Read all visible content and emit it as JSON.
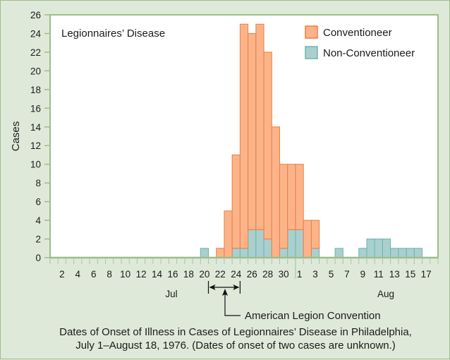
{
  "chart_data": {
    "type": "bar",
    "stacked": true,
    "title": "Legionnaires’ Disease",
    "ylabel": "Cases",
    "xlabel": "",
    "ylim": [
      0,
      26
    ],
    "yticks": [
      0,
      2,
      4,
      6,
      8,
      10,
      12,
      14,
      16,
      18,
      20,
      22,
      24,
      26
    ],
    "grid": false,
    "legend_position": "top-right",
    "months": [
      {
        "label": "Jul",
        "days": 31
      },
      {
        "label": "Aug",
        "days": 18
      }
    ],
    "xtick_labels": [
      {
        "month": 0,
        "day": 2,
        "label": "2"
      },
      {
        "month": 0,
        "day": 4,
        "label": "4"
      },
      {
        "month": 0,
        "day": 6,
        "label": "6"
      },
      {
        "month": 0,
        "day": 8,
        "label": "8"
      },
      {
        "month": 0,
        "day": 10,
        "label": "10"
      },
      {
        "month": 0,
        "day": 12,
        "label": "12"
      },
      {
        "month": 0,
        "day": 14,
        "label": "14"
      },
      {
        "month": 0,
        "day": 16,
        "label": "16"
      },
      {
        "month": 0,
        "day": 18,
        "label": "18"
      },
      {
        "month": 0,
        "day": 20,
        "label": "20"
      },
      {
        "month": 0,
        "day": 22,
        "label": "22"
      },
      {
        "month": 0,
        "day": 24,
        "label": "24"
      },
      {
        "month": 0,
        "day": 26,
        "label": "26"
      },
      {
        "month": 0,
        "day": 28,
        "label": "28"
      },
      {
        "month": 0,
        "day": 30,
        "label": "30"
      },
      {
        "month": 1,
        "day": 1,
        "label": "1"
      },
      {
        "month": 1,
        "day": 3,
        "label": "3"
      },
      {
        "month": 1,
        "day": 5,
        "label": "5"
      },
      {
        "month": 1,
        "day": 7,
        "label": "7"
      },
      {
        "month": 1,
        "day": 9,
        "label": "9"
      },
      {
        "month": 1,
        "day": 11,
        "label": "11"
      },
      {
        "month": 1,
        "day": 13,
        "label": "13"
      },
      {
        "month": 1,
        "day": 15,
        "label": "15"
      },
      {
        "month": 1,
        "day": 17,
        "label": "17"
      }
    ],
    "categories": [
      "Jul 1",
      "Jul 2",
      "Jul 3",
      "Jul 4",
      "Jul 5",
      "Jul 6",
      "Jul 7",
      "Jul 8",
      "Jul 9",
      "Jul 10",
      "Jul 11",
      "Jul 12",
      "Jul 13",
      "Jul 14",
      "Jul 15",
      "Jul 16",
      "Jul 17",
      "Jul 18",
      "Jul 19",
      "Jul 20",
      "Jul 21",
      "Jul 22",
      "Jul 23",
      "Jul 24",
      "Jul 25",
      "Jul 26",
      "Jul 27",
      "Jul 28",
      "Jul 29",
      "Jul 30",
      "Jul 31",
      "Aug 1",
      "Aug 2",
      "Aug 3",
      "Aug 4",
      "Aug 5",
      "Aug 6",
      "Aug 7",
      "Aug 8",
      "Aug 9",
      "Aug 10",
      "Aug 11",
      "Aug 12",
      "Aug 13",
      "Aug 14",
      "Aug 15",
      "Aug 16",
      "Aug 17",
      "Aug 18"
    ],
    "series": [
      {
        "name": "Non-Conventioneer",
        "color": "#a9d0ce",
        "stroke": "#6fb3ae",
        "values": [
          0,
          0,
          0,
          0,
          0,
          0,
          0,
          0,
          0,
          0,
          0,
          0,
          0,
          0,
          0,
          0,
          0,
          0,
          0,
          1,
          0,
          0,
          0,
          1,
          1,
          3,
          3,
          2,
          0,
          1,
          3,
          3,
          0,
          1,
          0,
          0,
          1,
          0,
          0,
          1,
          2,
          2,
          2,
          1,
          1,
          1,
          1,
          0,
          0
        ]
      },
      {
        "name": "Conventioneer",
        "color": "#fbb48a",
        "stroke": "#f07b3f",
        "values": [
          0,
          0,
          0,
          0,
          0,
          0,
          0,
          0,
          0,
          0,
          0,
          0,
          0,
          0,
          0,
          0,
          0,
          0,
          0,
          0,
          0,
          1,
          5,
          10,
          24,
          21,
          22,
          20,
          14,
          9,
          7,
          7,
          4,
          3,
          0,
          0,
          0,
          0,
          0,
          0,
          0,
          0,
          0,
          0,
          0,
          0,
          0,
          0,
          0
        ]
      }
    ],
    "annotations": [
      {
        "label": "American Legion Convention",
        "start": "Jul 21",
        "end": "Jul 24"
      }
    ],
    "caption_lines": [
      "Dates of Onset of Illness in Cases of Legionnaires’ Disease in Philadelphia,",
      "July 1–August 18, 1976. (Dates of onset of two cases are unknown.)"
    ]
  },
  "colors": {
    "background": "#dfe9da",
    "plot_background": "#ffffff",
    "axis": "#9cbe8a",
    "text": "#1a1a1a"
  }
}
